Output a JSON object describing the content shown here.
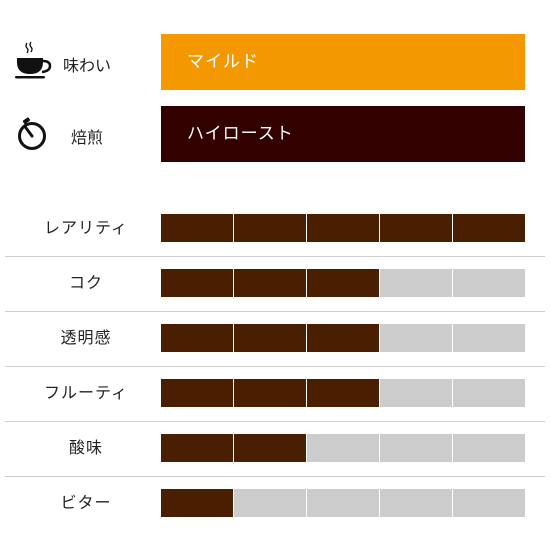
{
  "colors": {
    "taste_box": "#f39800",
    "roast_box": "#330000",
    "filled_segment": "#4a1e00",
    "empty_segment": "#cccccc"
  },
  "taste": {
    "icon": "coffee-cup-icon",
    "label": "味わい",
    "value": "マイルド"
  },
  "roast": {
    "icon": "timer-icon",
    "label": "焙煎",
    "value": "ハイロースト"
  },
  "ratings": [
    {
      "label": "レアリティ",
      "value": 5,
      "max": 5
    },
    {
      "label": "コク",
      "value": 3,
      "max": 5
    },
    {
      "label": "透明感",
      "value": 3,
      "max": 5
    },
    {
      "label": "フルーティ",
      "value": 3,
      "max": 5
    },
    {
      "label": "酸味",
      "value": 2,
      "max": 5
    },
    {
      "label": "ビター",
      "value": 1,
      "max": 5
    }
  ]
}
